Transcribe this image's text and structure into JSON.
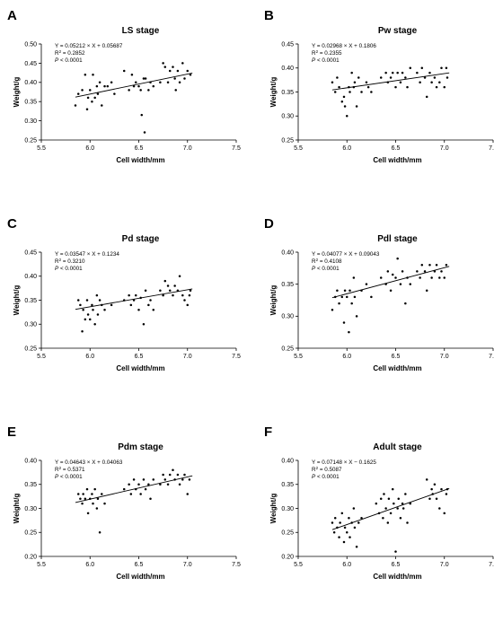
{
  "chart_data": [
    {
      "type": "scatter",
      "letter": "A",
      "title": "LS stage",
      "xlabel": "Cell width/mm",
      "ylabel": "Weight/g",
      "xlim": [
        5.5,
        7.5
      ],
      "ylim": [
        0.25,
        0.5
      ],
      "xticks": [
        "5.5",
        "6.0",
        "6.5",
        "7.0",
        "7.5"
      ],
      "yticks": [
        "0.25",
        "0.30",
        "0.35",
        "0.40",
        "0.45",
        "0.50"
      ],
      "equation": "Y = 0.05212 × X + 0.05687",
      "r2_value": " = 0.2852",
      "p_value": " < 0.0001",
      "fit": {
        "slope": 0.05212,
        "intercept": 0.05687,
        "x_range": [
          5.85,
          7.05
        ]
      },
      "points": [
        [
          5.85,
          0.34
        ],
        [
          5.88,
          0.37
        ],
        [
          5.92,
          0.38
        ],
        [
          5.95,
          0.42
        ],
        [
          5.97,
          0.33
        ],
        [
          5.98,
          0.36
        ],
        [
          6.0,
          0.38
        ],
        [
          6.02,
          0.35
        ],
        [
          6.03,
          0.42
        ],
        [
          6.05,
          0.36
        ],
        [
          6.07,
          0.39
        ],
        [
          6.08,
          0.37
        ],
        [
          6.1,
          0.4
        ],
        [
          6.12,
          0.34
        ],
        [
          6.15,
          0.39
        ],
        [
          6.18,
          0.39
        ],
        [
          6.22,
          0.4
        ],
        [
          6.25,
          0.37
        ],
        [
          6.35,
          0.43
        ],
        [
          6.4,
          0.38
        ],
        [
          6.43,
          0.42
        ],
        [
          6.45,
          0.39
        ],
        [
          6.47,
          0.4
        ],
        [
          6.5,
          0.39
        ],
        [
          6.52,
          0.38
        ],
        [
          6.53,
          0.315
        ],
        [
          6.55,
          0.41
        ],
        [
          6.56,
          0.27
        ],
        [
          6.57,
          0.41
        ],
        [
          6.6,
          0.38
        ],
        [
          6.62,
          0.4
        ],
        [
          6.65,
          0.39
        ],
        [
          6.72,
          0.4
        ],
        [
          6.75,
          0.45
        ],
        [
          6.77,
          0.44
        ],
        [
          6.8,
          0.4
        ],
        [
          6.82,
          0.43
        ],
        [
          6.85,
          0.44
        ],
        [
          6.87,
          0.41
        ],
        [
          6.88,
          0.38
        ],
        [
          6.9,
          0.43
        ],
        [
          6.92,
          0.4
        ],
        [
          6.95,
          0.45
        ],
        [
          6.97,
          0.41
        ],
        [
          7.0,
          0.43
        ],
        [
          7.03,
          0.42
        ]
      ]
    },
    {
      "type": "scatter",
      "letter": "B",
      "title": "Pw stage",
      "xlabel": "Cell width/mm",
      "ylabel": "Weight/g",
      "xlim": [
        5.5,
        7.5
      ],
      "ylim": [
        0.25,
        0.45
      ],
      "xticks": [
        "5.5",
        "6.0",
        "6.5",
        "7.0",
        "7.5"
      ],
      "yticks": [
        "0.25",
        "0.30",
        "0.35",
        "0.40",
        "0.45"
      ],
      "equation": "Y = 0.02968 × X + 0.1806",
      "r2_value": " = 0.2355",
      "p_value": " < 0.0001",
      "fit": {
        "slope": 0.02968,
        "intercept": 0.1806,
        "x_range": [
          5.85,
          7.05
        ]
      },
      "points": [
        [
          5.85,
          0.37
        ],
        [
          5.88,
          0.35
        ],
        [
          5.9,
          0.38
        ],
        [
          5.92,
          0.36
        ],
        [
          5.95,
          0.33
        ],
        [
          5.97,
          0.34
        ],
        [
          5.98,
          0.32
        ],
        [
          6.0,
          0.3
        ],
        [
          6.02,
          0.36
        ],
        [
          6.03,
          0.35
        ],
        [
          6.05,
          0.39
        ],
        [
          6.07,
          0.36
        ],
        [
          6.08,
          0.37
        ],
        [
          6.1,
          0.32
        ],
        [
          6.12,
          0.38
        ],
        [
          6.15,
          0.35
        ],
        [
          6.2,
          0.37
        ],
        [
          6.22,
          0.36
        ],
        [
          6.25,
          0.35
        ],
        [
          6.35,
          0.38
        ],
        [
          6.4,
          0.39
        ],
        [
          6.42,
          0.37
        ],
        [
          6.45,
          0.38
        ],
        [
          6.47,
          0.39
        ],
        [
          6.5,
          0.36
        ],
        [
          6.52,
          0.39
        ],
        [
          6.55,
          0.37
        ],
        [
          6.57,
          0.39
        ],
        [
          6.6,
          0.38
        ],
        [
          6.62,
          0.36
        ],
        [
          6.65,
          0.4
        ],
        [
          6.72,
          0.39
        ],
        [
          6.75,
          0.37
        ],
        [
          6.77,
          0.4
        ],
        [
          6.8,
          0.38
        ],
        [
          6.82,
          0.34
        ],
        [
          6.85,
          0.39
        ],
        [
          6.87,
          0.37
        ],
        [
          6.9,
          0.38
        ],
        [
          6.92,
          0.36
        ],
        [
          6.95,
          0.37
        ],
        [
          6.97,
          0.4
        ],
        [
          7.0,
          0.36
        ],
        [
          7.02,
          0.4
        ],
        [
          7.03,
          0.38
        ]
      ]
    },
    {
      "type": "scatter",
      "letter": "C",
      "title": "Pd stage",
      "xlabel": "Cell width/mm",
      "ylabel": "Weight/g",
      "xlim": [
        5.5,
        7.5
      ],
      "ylim": [
        0.25,
        0.45
      ],
      "xticks": [
        "5.5",
        "6.0",
        "6.5",
        "7.0",
        "7.5"
      ],
      "yticks": [
        "0.25",
        "0.30",
        "0.35",
        "0.40",
        "0.45"
      ],
      "equation": "Y = 0.03547 × X + 0.1234",
      "r2_value": " = 0.3210",
      "p_value": " < 0.0001",
      "fit": {
        "slope": 0.03547,
        "intercept": 0.1234,
        "x_range": [
          5.85,
          7.05
        ]
      },
      "points": [
        [
          5.88,
          0.35
        ],
        [
          5.9,
          0.34
        ],
        [
          5.92,
          0.285
        ],
        [
          5.93,
          0.33
        ],
        [
          5.95,
          0.31
        ],
        [
          5.97,
          0.35
        ],
        [
          5.98,
          0.32
        ],
        [
          6.0,
          0.31
        ],
        [
          6.02,
          0.34
        ],
        [
          6.03,
          0.33
        ],
        [
          6.05,
          0.3
        ],
        [
          6.07,
          0.36
        ],
        [
          6.08,
          0.32
        ],
        [
          6.1,
          0.35
        ],
        [
          6.12,
          0.34
        ],
        [
          6.15,
          0.33
        ],
        [
          6.22,
          0.34
        ],
        [
          6.35,
          0.35
        ],
        [
          6.4,
          0.36
        ],
        [
          6.42,
          0.34
        ],
        [
          6.45,
          0.35
        ],
        [
          6.47,
          0.36
        ],
        [
          6.5,
          0.33
        ],
        [
          6.52,
          0.355
        ],
        [
          6.55,
          0.3
        ],
        [
          6.57,
          0.37
        ],
        [
          6.6,
          0.34
        ],
        [
          6.62,
          0.35
        ],
        [
          6.65,
          0.33
        ],
        [
          6.72,
          0.37
        ],
        [
          6.75,
          0.36
        ],
        [
          6.77,
          0.39
        ],
        [
          6.8,
          0.38
        ],
        [
          6.82,
          0.37
        ],
        [
          6.85,
          0.36
        ],
        [
          6.87,
          0.38
        ],
        [
          6.9,
          0.37
        ],
        [
          6.92,
          0.4
        ],
        [
          6.95,
          0.36
        ],
        [
          6.97,
          0.35
        ],
        [
          7.0,
          0.34
        ],
        [
          7.02,
          0.36
        ],
        [
          7.03,
          0.37
        ]
      ]
    },
    {
      "type": "scatter",
      "letter": "D",
      "title": "Pdl stage",
      "xlabel": "Cell width/mm",
      "ylabel": "Weight/g",
      "xlim": [
        5.5,
        7.5
      ],
      "ylim": [
        0.25,
        0.4
      ],
      "xticks": [
        "5.5",
        "6.0",
        "6.5",
        "7.0",
        "7.5"
      ],
      "yticks": [
        "0.25",
        "0.30",
        "0.35",
        "0.40"
      ],
      "equation": "Y = 0.04077 × X + 0.09043",
      "r2_value": " = 0.4108",
      "p_value": " < 0.0001",
      "fit": {
        "slope": 0.04077,
        "intercept": 0.09043,
        "x_range": [
          5.85,
          7.05
        ]
      },
      "points": [
        [
          5.85,
          0.31
        ],
        [
          5.88,
          0.33
        ],
        [
          5.9,
          0.34
        ],
        [
          5.92,
          0.32
        ],
        [
          5.95,
          0.33
        ],
        [
          5.97,
          0.29
        ],
        [
          5.98,
          0.34
        ],
        [
          6.0,
          0.33
        ],
        [
          6.02,
          0.275
        ],
        [
          6.03,
          0.34
        ],
        [
          6.05,
          0.32
        ],
        [
          6.07,
          0.36
        ],
        [
          6.08,
          0.33
        ],
        [
          6.1,
          0.3
        ],
        [
          6.15,
          0.34
        ],
        [
          6.2,
          0.35
        ],
        [
          6.25,
          0.33
        ],
        [
          6.35,
          0.36
        ],
        [
          6.4,
          0.35
        ],
        [
          6.42,
          0.37
        ],
        [
          6.45,
          0.34
        ],
        [
          6.47,
          0.365
        ],
        [
          6.5,
          0.36
        ],
        [
          6.52,
          0.39
        ],
        [
          6.55,
          0.35
        ],
        [
          6.57,
          0.37
        ],
        [
          6.6,
          0.32
        ],
        [
          6.62,
          0.36
        ],
        [
          6.65,
          0.35
        ],
        [
          6.72,
          0.37
        ],
        [
          6.75,
          0.36
        ],
        [
          6.77,
          0.38
        ],
        [
          6.8,
          0.37
        ],
        [
          6.82,
          0.34
        ],
        [
          6.85,
          0.38
        ],
        [
          6.87,
          0.36
        ],
        [
          6.9,
          0.37
        ],
        [
          6.92,
          0.38
        ],
        [
          6.95,
          0.36
        ],
        [
          6.97,
          0.37
        ],
        [
          7.0,
          0.36
        ],
        [
          7.02,
          0.38
        ]
      ]
    },
    {
      "type": "scatter",
      "letter": "E",
      "title": "Pdm stage",
      "xlabel": "Cell width/mm",
      "ylabel": "Weight/g",
      "xlim": [
        5.5,
        7.5
      ],
      "ylim": [
        0.2,
        0.4
      ],
      "xticks": [
        "5.5",
        "6.0",
        "6.5",
        "7.0",
        "7.5"
      ],
      "yticks": [
        "0.20",
        "0.25",
        "0.30",
        "0.35",
        "0.40"
      ],
      "equation": "Y = 0.04643 × X + 0.04063",
      "r2_value": " = 0.5371",
      "p_value": " < 0.0001",
      "fit": {
        "slope": 0.04643,
        "intercept": 0.04063,
        "x_range": [
          5.85,
          7.05
        ]
      },
      "points": [
        [
          5.88,
          0.33
        ],
        [
          5.9,
          0.32
        ],
        [
          5.92,
          0.31
        ],
        [
          5.93,
          0.33
        ],
        [
          5.95,
          0.32
        ],
        [
          5.97,
          0.34
        ],
        [
          5.98,
          0.29
        ],
        [
          6.0,
          0.32
        ],
        [
          6.02,
          0.33
        ],
        [
          6.03,
          0.31
        ],
        [
          6.05,
          0.34
        ],
        [
          6.07,
          0.3
        ],
        [
          6.08,
          0.32
        ],
        [
          6.1,
          0.25
        ],
        [
          6.12,
          0.33
        ],
        [
          6.15,
          0.31
        ],
        [
          6.35,
          0.34
        ],
        [
          6.4,
          0.35
        ],
        [
          6.42,
          0.33
        ],
        [
          6.45,
          0.36
        ],
        [
          6.47,
          0.34
        ],
        [
          6.5,
          0.35
        ],
        [
          6.52,
          0.33
        ],
        [
          6.55,
          0.36
        ],
        [
          6.57,
          0.34
        ],
        [
          6.6,
          0.35
        ],
        [
          6.62,
          0.32
        ],
        [
          6.65,
          0.36
        ],
        [
          6.72,
          0.35
        ],
        [
          6.75,
          0.37
        ],
        [
          6.77,
          0.36
        ],
        [
          6.8,
          0.35
        ],
        [
          6.82,
          0.37
        ],
        [
          6.85,
          0.38
        ],
        [
          6.87,
          0.36
        ],
        [
          6.9,
          0.37
        ],
        [
          6.92,
          0.35
        ],
        [
          6.95,
          0.36
        ],
        [
          6.97,
          0.37
        ],
        [
          7.0,
          0.33
        ],
        [
          7.02,
          0.36
        ]
      ]
    },
    {
      "type": "scatter",
      "letter": "F",
      "title": "Adult stage",
      "xlabel": "Cell width/mm",
      "ylabel": "Weight/g",
      "xlim": [
        5.5,
        7.5
      ],
      "ylim": [
        0.2,
        0.4
      ],
      "xticks": [
        "5.5",
        "6.0",
        "6.5",
        "7.0",
        "7.5"
      ],
      "yticks": [
        "0.20",
        "0.25",
        "0.30",
        "0.35",
        "0.40"
      ],
      "equation": "Y = 0.07148 × X − 0.1625",
      "r2_value": " = 0.5087",
      "p_value": " < 0.0001",
      "fit": {
        "slope": 0.07148,
        "intercept": -0.1625,
        "x_range": [
          5.85,
          7.05
        ]
      },
      "points": [
        [
          5.85,
          0.27
        ],
        [
          5.87,
          0.25
        ],
        [
          5.88,
          0.28
        ],
        [
          5.9,
          0.26
        ],
        [
          5.92,
          0.24
        ],
        [
          5.93,
          0.27
        ],
        [
          5.95,
          0.29
        ],
        [
          5.97,
          0.23
        ],
        [
          5.98,
          0.26
        ],
        [
          6.0,
          0.25
        ],
        [
          6.02,
          0.28
        ],
        [
          6.03,
          0.24
        ],
        [
          6.05,
          0.27
        ],
        [
          6.07,
          0.3
        ],
        [
          6.08,
          0.26
        ],
        [
          6.1,
          0.22
        ],
        [
          6.12,
          0.27
        ],
        [
          6.15,
          0.28
        ],
        [
          6.3,
          0.31
        ],
        [
          6.33,
          0.29
        ],
        [
          6.35,
          0.32
        ],
        [
          6.37,
          0.28
        ],
        [
          6.38,
          0.33
        ],
        [
          6.4,
          0.3
        ],
        [
          6.42,
          0.27
        ],
        [
          6.43,
          0.32
        ],
        [
          6.45,
          0.29
        ],
        [
          6.47,
          0.34
        ],
        [
          6.48,
          0.31
        ],
        [
          6.5,
          0.21
        ],
        [
          6.52,
          0.3
        ],
        [
          6.53,
          0.32
        ],
        [
          6.55,
          0.28
        ],
        [
          6.57,
          0.31
        ],
        [
          6.58,
          0.3
        ],
        [
          6.6,
          0.33
        ],
        [
          6.62,
          0.27
        ],
        [
          6.65,
          0.31
        ],
        [
          6.82,
          0.36
        ],
        [
          6.85,
          0.32
        ],
        [
          6.87,
          0.34
        ],
        [
          6.88,
          0.33
        ],
        [
          6.9,
          0.35
        ],
        [
          6.92,
          0.32
        ],
        [
          6.95,
          0.3
        ],
        [
          6.97,
          0.34
        ],
        [
          7.0,
          0.29
        ],
        [
          7.02,
          0.33
        ],
        [
          7.03,
          0.34
        ]
      ]
    }
  ]
}
